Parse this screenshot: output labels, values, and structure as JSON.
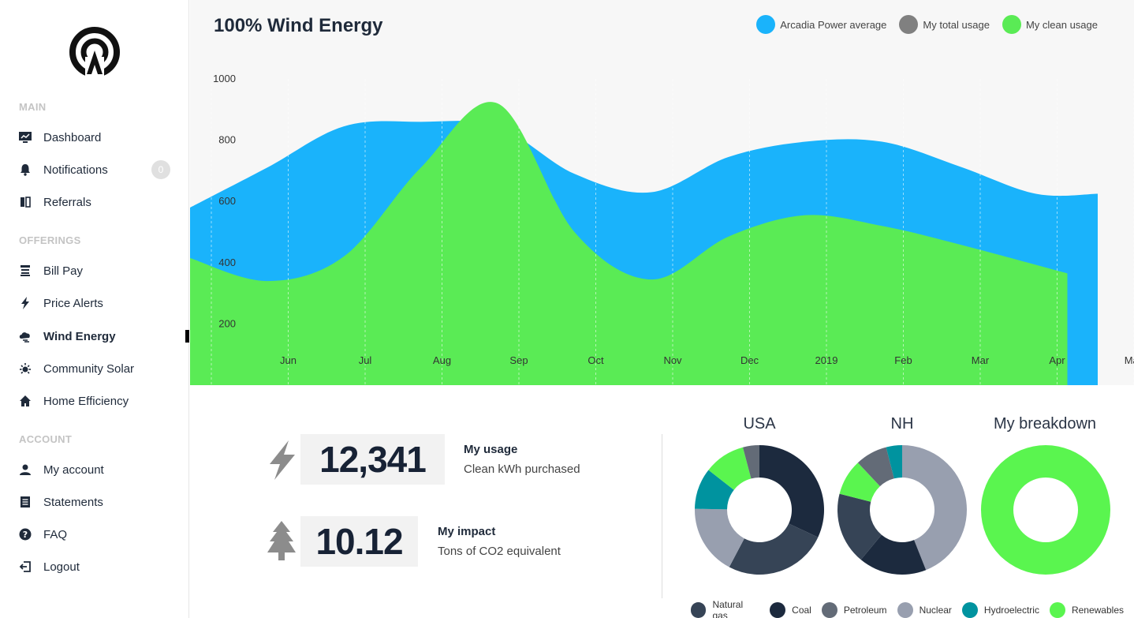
{
  "sidebar": {
    "sections": {
      "main": "MAIN",
      "offerings": "OFFERINGS",
      "account": "ACCOUNT"
    },
    "items": [
      {
        "label": "Dashboard",
        "icon": "dashboard-icon"
      },
      {
        "label": "Notifications",
        "icon": "bell-icon",
        "badge": "0"
      },
      {
        "label": "Referrals",
        "icon": "referrals-icon"
      },
      {
        "label": "Bill Pay",
        "icon": "bill-pay-icon"
      },
      {
        "label": "Price Alerts",
        "icon": "lightning-icon"
      },
      {
        "label": "Wind Energy",
        "icon": "wind-cloud-icon",
        "active": true
      },
      {
        "label": "Community Solar",
        "icon": "sun-icon"
      },
      {
        "label": "Home Efficiency",
        "icon": "home-icon"
      },
      {
        "label": "My account",
        "icon": "user-icon"
      },
      {
        "label": "Statements",
        "icon": "statements-icon"
      },
      {
        "label": "FAQ",
        "icon": "question-icon"
      },
      {
        "label": "Logout",
        "icon": "logout-icon"
      }
    ]
  },
  "colors": {
    "arcadia": "#1ab3fb",
    "total": "#808080",
    "clean": "#5aeb55",
    "natural_gas": "#364456",
    "coal": "#1c2a3e",
    "petroleum": "#636b77",
    "nuclear": "#989faf",
    "hydroelectric": "#00939f",
    "renewables": "#5af54f"
  },
  "chart": {
    "title": "100% Wind Energy",
    "legend": [
      "Arcadia Power average",
      "My total usage",
      "My clean usage"
    ]
  },
  "chart_data": [
    {
      "type": "area",
      "title": "100% Wind Energy",
      "x": [
        "",
        "Jun",
        "Jul",
        "Aug",
        "Sep",
        "Oct",
        "Nov",
        "Dec",
        "2019",
        "Feb",
        "Mar",
        "Apr",
        "May"
      ],
      "y_ticks": [
        1000,
        800,
        600,
        400,
        200
      ],
      "ylim": [
        0,
        1100
      ],
      "grid": "vertical dashed",
      "legend_position": "top-right",
      "series": [
        {
          "name": "Arcadia Power average",
          "values": [
            580,
            710,
            845,
            860,
            845,
            690,
            630,
            745,
            795,
            795,
            715,
            625,
            625
          ]
        },
        {
          "name": "My clean usage",
          "values": [
            415,
            340,
            420,
            710,
            920,
            500,
            345,
            485,
            555,
            520,
            460,
            365,
            0
          ]
        }
      ]
    },
    {
      "type": "pie",
      "title": "USA",
      "labels": [
        "Coal",
        "Natural gas",
        "Nuclear",
        "Hydroelectric",
        "Renewables",
        "Petroleum"
      ],
      "values": [
        31,
        25,
        17,
        10,
        10,
        4
      ]
    },
    {
      "type": "pie",
      "title": "NH",
      "labels": [
        "Nuclear",
        "Coal",
        "Natural gas",
        "Renewables",
        "Petroleum",
        "Hydroelectric"
      ],
      "values": [
        44,
        17,
        18,
        9,
        8,
        4
      ]
    },
    {
      "type": "pie",
      "title": "My breakdown",
      "labels": [
        "Renewables"
      ],
      "values": [
        100
      ]
    }
  ],
  "stats": {
    "usage": {
      "value": "12,341",
      "title": "My usage",
      "subtitle": "Clean kWh purchased"
    },
    "impact": {
      "value": "10.12",
      "title": "My impact",
      "subtitle": "Tons of CO2 equivalent"
    }
  },
  "donuts": {
    "titles": [
      "USA",
      "NH",
      "My breakdown"
    ],
    "legend": [
      "Natural gas",
      "Coal",
      "Petroleum",
      "Nuclear",
      "Hydroelectric",
      "Renewables"
    ]
  }
}
